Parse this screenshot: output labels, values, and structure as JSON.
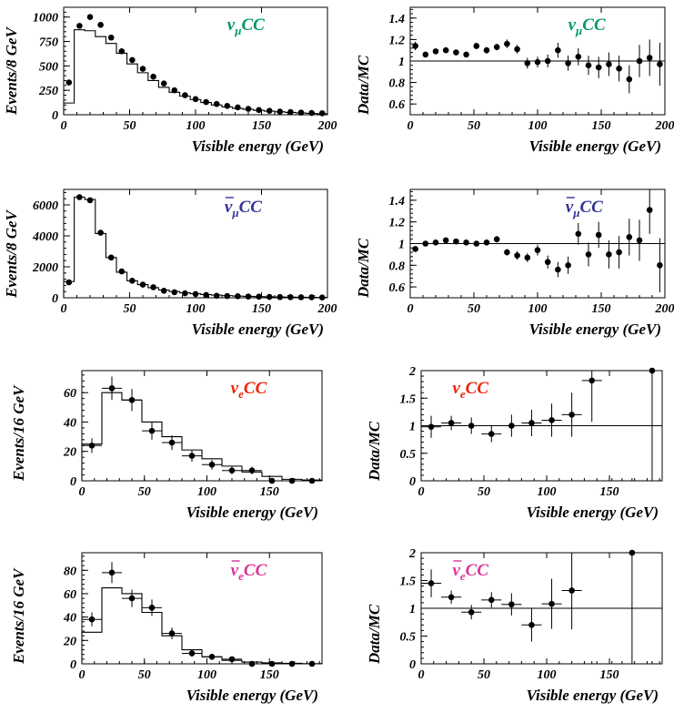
{
  "colors": {
    "numu": "#009966",
    "numubar": "#333399",
    "nue": "#ee2200",
    "nuebar": "#dd3399"
  },
  "chart_data": [
    {
      "type": "scatter",
      "panel_label": "νμCC",
      "label_parts": {
        "bar": false,
        "nu": "ν",
        "sub": "μ",
        "rest": "CC"
      },
      "label_color": "numu",
      "xlabel": "Visible energy (GeV)",
      "ylabel": "Events/8 GeV",
      "xlim": [
        0,
        200
      ],
      "ylim": [
        0,
        1100
      ],
      "xticks": [
        0,
        50,
        100,
        150,
        200
      ],
      "yticks": [
        0,
        250,
        500,
        750,
        1000
      ],
      "bin_width": 8,
      "mc_histogram": [
        120,
        870,
        860,
        800,
        730,
        630,
        520,
        430,
        350,
        280,
        230,
        190,
        155,
        125,
        100,
        80,
        65,
        55,
        45,
        37,
        30,
        24,
        18,
        14,
        10
      ],
      "data_points": {
        "x": [
          4,
          12,
          20,
          28,
          36,
          44,
          52,
          60,
          68,
          76,
          84,
          92,
          100,
          108,
          116,
          124,
          132,
          140,
          148,
          156,
          164,
          172,
          180,
          188,
          196
        ],
        "y": [
          330,
          910,
          1000,
          920,
          790,
          650,
          560,
          470,
          390,
          320,
          250,
          200,
          160,
          130,
          110,
          90,
          75,
          60,
          48,
          40,
          32,
          28,
          22,
          18,
          15
        ]
      }
    },
    {
      "type": "scatter",
      "panel_label": "νμCC",
      "label_parts": {
        "bar": false,
        "nu": "ν",
        "sub": "μ",
        "rest": "CC"
      },
      "label_color": "numu",
      "xlabel": "Visible energy (GeV)",
      "ylabel": "Data/MC",
      "xlim": [
        0,
        200
      ],
      "ylim": [
        0.5,
        1.5
      ],
      "xticks": [
        0,
        50,
        100,
        150,
        200
      ],
      "yticks": [
        0.6,
        0.8,
        1,
        1.2,
        1.4
      ],
      "ytick_labels": [
        "0.6",
        "0.8",
        "1",
        "1.2",
        "1.4"
      ],
      "reference_line": 1,
      "data_points": {
        "x": [
          4,
          12,
          20,
          28,
          36,
          44,
          52,
          60,
          68,
          76,
          84,
          92,
          100,
          108,
          116,
          124,
          132,
          140,
          148,
          156,
          164,
          172,
          180,
          188,
          196
        ],
        "y": [
          1.14,
          1.06,
          1.09,
          1.1,
          1.08,
          1.06,
          1.14,
          1.1,
          1.13,
          1.16,
          1.11,
          0.98,
          0.99,
          1.0,
          1.1,
          0.98,
          1.04,
          0.96,
          0.94,
          0.97,
          0.93,
          0.83,
          1.0,
          1.03,
          0.97
        ],
        "err": [
          0.04,
          0.02,
          0.02,
          0.02,
          0.02,
          0.02,
          0.03,
          0.03,
          0.03,
          0.04,
          0.04,
          0.05,
          0.05,
          0.06,
          0.07,
          0.07,
          0.08,
          0.09,
          0.1,
          0.11,
          0.12,
          0.13,
          0.15,
          0.17,
          0.2
        ]
      }
    },
    {
      "type": "scatter",
      "panel_label": "ν̄μCC",
      "label_parts": {
        "bar": true,
        "nu": "ν",
        "sub": "μ",
        "rest": "CC"
      },
      "label_color": "numubar",
      "xlabel": "Visible energy (GeV)",
      "ylabel": "Events/8 GeV",
      "xlim": [
        0,
        200
      ],
      "ylim": [
        0,
        7000
      ],
      "xticks": [
        0,
        50,
        100,
        150,
        200
      ],
      "yticks": [
        0,
        2000,
        4000,
        6000
      ],
      "bin_width": 8,
      "mc_histogram": [
        1050,
        6500,
        6350,
        4150,
        2600,
        1650,
        1100,
        850,
        650,
        500,
        400,
        320,
        260,
        210,
        170,
        140,
        110,
        90,
        75,
        60,
        50,
        40,
        32,
        25,
        20
      ],
      "data_points": {
        "x": [
          4,
          12,
          20,
          28,
          36,
          44,
          52,
          60,
          68,
          76,
          84,
          92,
          100,
          108,
          116,
          124,
          132,
          140,
          148,
          156,
          164,
          172,
          180,
          188,
          196
        ],
        "y": [
          1000,
          6500,
          6300,
          4200,
          2600,
          1700,
          1100,
          850,
          680,
          450,
          360,
          290,
          240,
          180,
          130,
          110,
          100,
          80,
          70,
          55,
          45,
          40,
          33,
          35,
          18
        ]
      }
    },
    {
      "type": "scatter",
      "panel_label": "ν̄μCC",
      "label_parts": {
        "bar": true,
        "nu": "ν",
        "sub": "μ",
        "rest": "CC"
      },
      "label_color": "numubar",
      "xlabel": "Visible energy (GeV)",
      "ylabel": "Data/MC",
      "xlim": [
        0,
        200
      ],
      "ylim": [
        0.5,
        1.5
      ],
      "xticks": [
        0,
        50,
        100,
        150,
        200
      ],
      "yticks": [
        0.6,
        0.8,
        1,
        1.2,
        1.4
      ],
      "ytick_labels": [
        "0.6",
        "0.8",
        "1",
        "1.2",
        "1.4"
      ],
      "reference_line": 1,
      "data_points": {
        "x": [
          4,
          12,
          20,
          28,
          36,
          44,
          52,
          60,
          68,
          76,
          84,
          92,
          100,
          108,
          116,
          124,
          132,
          140,
          148,
          156,
          164,
          172,
          180,
          188,
          196
        ],
        "y": [
          0.95,
          1.0,
          1.01,
          1.03,
          1.02,
          1.01,
          1.0,
          1.01,
          1.04,
          0.92,
          0.89,
          0.87,
          0.94,
          0.83,
          0.76,
          0.8,
          1.09,
          0.9,
          1.08,
          0.9,
          0.92,
          1.06,
          1.03,
          1.31,
          0.8
        ],
        "err": [
          0.02,
          0.01,
          0.01,
          0.01,
          0.01,
          0.02,
          0.02,
          0.02,
          0.03,
          0.03,
          0.04,
          0.04,
          0.05,
          0.06,
          0.07,
          0.08,
          0.1,
          0.11,
          0.12,
          0.13,
          0.15,
          0.17,
          0.19,
          0.22,
          0.25
        ]
      }
    },
    {
      "type": "scatter",
      "panel_label": "νeCC",
      "label_parts": {
        "bar": false,
        "nu": "ν",
        "sub": "e",
        "rest": "CC"
      },
      "label_color": "nue",
      "xlabel": "Visible energy (GeV)",
      "ylabel": "Events/16 GeV",
      "xlim": [
        0,
        192
      ],
      "ylim": [
        0,
        75
      ],
      "xticks": [
        0,
        50,
        100,
        150
      ],
      "yticks": [
        0,
        20,
        40,
        60
      ],
      "bin_width": 16,
      "mc_histogram": [
        25,
        60,
        55,
        40,
        30,
        21,
        15,
        10,
        6,
        3,
        1,
        0.5
      ],
      "data_points": {
        "x": [
          8,
          24,
          40,
          56,
          72,
          88,
          104,
          120,
          136,
          152,
          168,
          184
        ],
        "y": [
          24,
          63,
          55,
          34,
          26,
          17,
          11,
          7,
          7,
          0,
          0,
          0
        ],
        "err": [
          5,
          8,
          7.5,
          6,
          5,
          4,
          3.3,
          2.6,
          2.6,
          0,
          0,
          0
        ]
      }
    },
    {
      "type": "scatter",
      "panel_label": "νeCC",
      "label_parts": {
        "bar": false,
        "nu": "ν",
        "sub": "e",
        "rest": "CC"
      },
      "label_color": "nue",
      "xlabel": "Visible energy (GeV)",
      "ylabel": "Data/MC",
      "xlim": [
        0,
        192
      ],
      "ylim": [
        0,
        2
      ],
      "xticks": [
        0,
        50,
        100,
        150
      ],
      "yticks": [
        0,
        0.5,
        1,
        1.5,
        2
      ],
      "ytick_labels": [
        "0",
        "0.5",
        "1",
        "1.5",
        "2"
      ],
      "reference_line": 1,
      "data_points": {
        "x": [
          8,
          24,
          40,
          56,
          72,
          88,
          104,
          120,
          136,
          152,
          168,
          184
        ],
        "y": [
          0.98,
          1.05,
          1.0,
          0.85,
          1.0,
          1.05,
          1.1,
          1.2,
          1.82,
          0,
          0,
          2.0
        ],
        "err": [
          0.2,
          0.13,
          0.15,
          0.15,
          0.2,
          0.24,
          0.3,
          0.4,
          0.75,
          0,
          0,
          2.0
        ]
      }
    },
    {
      "type": "scatter",
      "panel_label": "ν̄eCC",
      "label_parts": {
        "bar": true,
        "nu": "ν",
        "sub": "e",
        "rest": "CC"
      },
      "label_color": "nuebar",
      "xlabel": "Visible energy (GeV)",
      "ylabel": "Events/16 GeV",
      "xlim": [
        0,
        192
      ],
      "ylim": [
        0,
        95
      ],
      "xticks": [
        0,
        50,
        100,
        150
      ],
      "yticks": [
        0,
        20,
        40,
        60,
        80
      ],
      "bin_width": 16,
      "mc_histogram": [
        27,
        65,
        60,
        44,
        24,
        12,
        6,
        3,
        1.5,
        0.8,
        0.4,
        0.2
      ],
      "data_points": {
        "x": [
          8,
          24,
          40,
          56,
          72,
          88,
          104,
          120,
          136,
          152,
          168,
          184
        ],
        "y": [
          38,
          78,
          56,
          48,
          26,
          9,
          6,
          4,
          0,
          0,
          0,
          0
        ],
        "err": [
          6,
          9,
          7.5,
          7,
          5,
          3,
          2.5,
          2,
          0,
          0,
          0,
          0
        ]
      }
    },
    {
      "type": "scatter",
      "panel_label": "ν̄eCC",
      "label_parts": {
        "bar": true,
        "nu": "ν",
        "sub": "e",
        "rest": "CC"
      },
      "label_color": "nuebar",
      "xlabel": "Visible energy (GeV)",
      "ylabel": "Data/MC",
      "xlim": [
        0,
        192
      ],
      "ylim": [
        0,
        2
      ],
      "xticks": [
        0,
        50,
        100,
        150
      ],
      "yticks": [
        0,
        0.5,
        1,
        1.5,
        2
      ],
      "ytick_labels": [
        "0",
        "0.5",
        "1",
        "1.5",
        "2"
      ],
      "reference_line": 1,
      "data_points": {
        "x": [
          8,
          24,
          40,
          56,
          72,
          88,
          104,
          120,
          136,
          152,
          168,
          184
        ],
        "y": [
          1.45,
          1.2,
          0.93,
          1.15,
          1.07,
          0.7,
          1.08,
          1.32,
          0,
          0,
          2.0,
          0
        ],
        "err": [
          0.25,
          0.12,
          0.13,
          0.14,
          0.2,
          0.3,
          0.45,
          0.7,
          0,
          0,
          2.0,
          0
        ]
      }
    }
  ]
}
